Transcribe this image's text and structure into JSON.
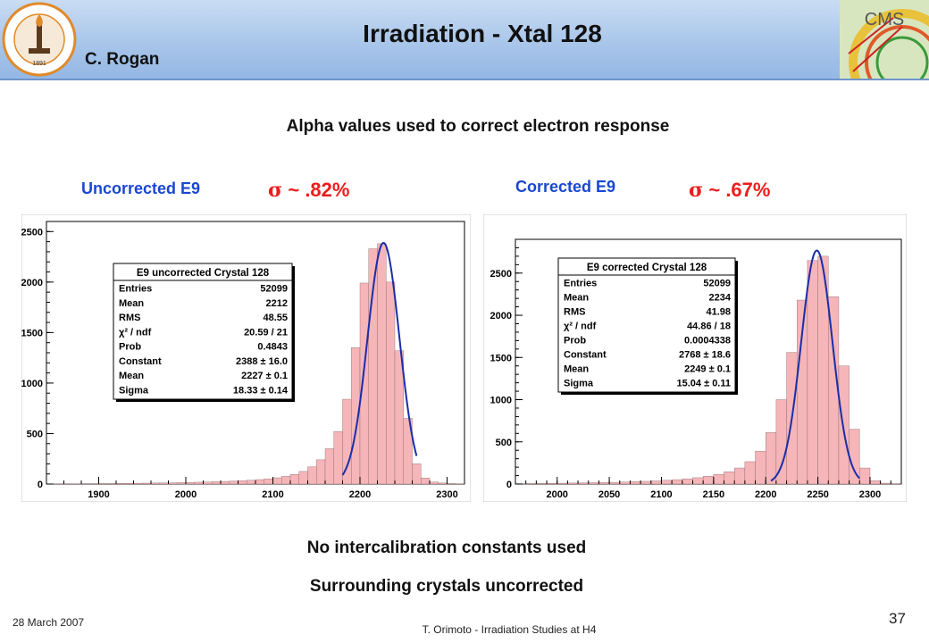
{
  "header": {
    "title": "Irradiation - Xtal 128",
    "author": "C. Rogan",
    "left_logo_text": "CALIFORNIA INSTITUTE OF TECHNOLOGY",
    "left_logo_year": "1891",
    "right_logo_text": "CMS"
  },
  "subtitle": "Alpha values used to correct electron response",
  "left": {
    "label": "Uncorrected E9",
    "sigma_symbol": "σ",
    "sigma": "~ .82%"
  },
  "right": {
    "label": "Corrected E9",
    "sigma_symbol": "σ",
    "sigma": "~ .67%"
  },
  "notes": [
    "No intercalibration constants used",
    "Surrounding crystals uncorrected"
  ],
  "footer": {
    "date": "28 March 2007",
    "center": "T. Orimoto - Irradiation Studies at H4",
    "page": "37"
  },
  "colors": {
    "fill": "#f5b5b9",
    "fit": "#1a2ea8",
    "title_blue": "#1a47d0",
    "sigma_red": "#ee1c1c"
  },
  "chart_data": [
    {
      "type": "bar",
      "title": "E9 uncorrected Crystal 128",
      "xlim": [
        1840,
        2320
      ],
      "ylim": [
        0,
        2600
      ],
      "xticks": [
        1900,
        2000,
        2100,
        2200,
        2300
      ],
      "yticks": [
        0,
        500,
        1000,
        1500,
        2000,
        2500
      ],
      "fit": {
        "constant": 2388,
        "mean": 2227,
        "sigma": 18.33,
        "range": [
          2180,
          2265
        ]
      },
      "stats": [
        [
          "Entries",
          "52099"
        ],
        [
          "Mean",
          "2212"
        ],
        [
          "RMS",
          "48.55"
        ],
        [
          "χ² / ndf",
          "20.59 / 21"
        ],
        [
          "Prob",
          "0.4843"
        ],
        [
          "Constant",
          "2388 ± 16.0"
        ],
        [
          "Mean",
          "2227 ± 0.1"
        ],
        [
          "Sigma",
          "18.33 ± 0.14"
        ]
      ],
      "x": [
        1845,
        1855,
        1865,
        1875,
        1885,
        1895,
        1905,
        1915,
        1925,
        1935,
        1945,
        1955,
        1965,
        1975,
        1985,
        1995,
        2005,
        2015,
        2025,
        2035,
        2045,
        2055,
        2065,
        2075,
        2085,
        2095,
        2105,
        2115,
        2125,
        2135,
        2145,
        2155,
        2165,
        2175,
        2185,
        2195,
        2205,
        2215,
        2225,
        2235,
        2245,
        2255,
        2265,
        2275,
        2285,
        2295,
        2305,
        2315
      ],
      "values": [
        2,
        2,
        3,
        3,
        4,
        4,
        5,
        5,
        6,
        7,
        8,
        9,
        10,
        11,
        12,
        14,
        16,
        18,
        20,
        23,
        26,
        29,
        33,
        38,
        44,
        52,
        62,
        76,
        95,
        125,
        170,
        240,
        350,
        520,
        840,
        1350,
        1990,
        2330,
        2380,
        2000,
        1320,
        650,
        200,
        60,
        20,
        10,
        5,
        2
      ]
    },
    {
      "type": "bar",
      "title": "E9 corrected Crystal 128",
      "xlim": [
        1960,
        2330
      ],
      "ylim": [
        0,
        2900
      ],
      "xticks": [
        2000,
        2050,
        2100,
        2150,
        2200,
        2250,
        2300
      ],
      "yticks": [
        0,
        500,
        1000,
        1500,
        2000,
        2500
      ],
      "fit": {
        "constant": 2768,
        "mean": 2249,
        "sigma": 15.04,
        "range": [
          2205,
          2290
        ]
      },
      "stats": [
        [
          "Entries",
          "52099"
        ],
        [
          "Mean",
          "2234"
        ],
        [
          "RMS",
          "41.98"
        ],
        [
          "χ² / ndf",
          "44.86 / 18"
        ],
        [
          "Prob",
          "0.0004338"
        ],
        [
          "Constant",
          "2768 ± 18.6"
        ],
        [
          "Mean",
          "2249 ± 0.1"
        ],
        [
          "Sigma",
          "15.04 ± 0.11"
        ]
      ],
      "x": [
        1965,
        1975,
        1985,
        1995,
        2005,
        2015,
        2025,
        2035,
        2045,
        2055,
        2065,
        2075,
        2085,
        2095,
        2105,
        2115,
        2125,
        2135,
        2145,
        2155,
        2165,
        2175,
        2185,
        2195,
        2205,
        2215,
        2225,
        2235,
        2245,
        2255,
        2265,
        2275,
        2285,
        2295,
        2305,
        2315,
        2325
      ],
      "values": [
        4,
        6,
        8,
        9,
        10,
        12,
        14,
        16,
        18,
        20,
        24,
        28,
        32,
        37,
        44,
        52,
        62,
        75,
        92,
        115,
        145,
        190,
        265,
        390,
        610,
        1000,
        1560,
        2180,
        2650,
        2700,
        2220,
        1400,
        650,
        190,
        40,
        10,
        4
      ]
    }
  ]
}
